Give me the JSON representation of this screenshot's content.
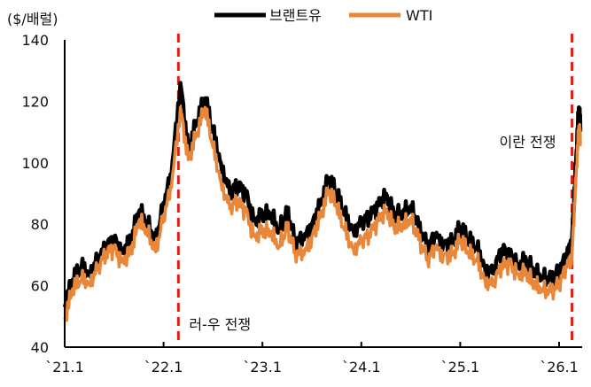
{
  "chart_data": {
    "type": "line",
    "ylabel": "($/배럴)",
    "ylim": [
      40,
      140
    ],
    "yticks": [
      40,
      60,
      80,
      100,
      120,
      140
    ],
    "xlim": [
      2021.0,
      2026.25
    ],
    "xticks": [
      {
        "value": 2021.0,
        "label": "`21.1"
      },
      {
        "value": 2022.0,
        "label": "`22.1"
      },
      {
        "value": 2023.0,
        "label": "`23.1"
      },
      {
        "value": 2024.0,
        "label": "`24.1"
      },
      {
        "value": 2025.0,
        "label": "`25.1"
      },
      {
        "value": 2026.0,
        "label": "`26.1"
      }
    ],
    "grid": false,
    "legend_position": "top-center",
    "colors": {
      "brent": "#000000",
      "wti": "#E8863A",
      "event": "#E0201B"
    },
    "x": [
      2021.0,
      2021.08,
      2021.17,
      2021.25,
      2021.33,
      2021.42,
      2021.5,
      2021.58,
      2021.67,
      2021.75,
      2021.83,
      2021.92,
      2022.0,
      2022.08,
      2022.17,
      2022.25,
      2022.33,
      2022.42,
      2022.5,
      2022.58,
      2022.67,
      2022.75,
      2022.83,
      2022.92,
      2023.0,
      2023.08,
      2023.17,
      2023.25,
      2023.33,
      2023.42,
      2023.5,
      2023.58,
      2023.67,
      2023.75,
      2023.83,
      2023.92,
      2024.0,
      2024.08,
      2024.17,
      2024.25,
      2024.33,
      2024.42,
      2024.5,
      2024.58,
      2024.67,
      2024.75,
      2024.83,
      2024.92,
      2025.0,
      2025.08,
      2025.17,
      2025.25,
      2025.33,
      2025.42,
      2025.5,
      2025.58,
      2025.67,
      2025.75,
      2025.83,
      2025.92,
      2026.0,
      2026.08,
      2026.13,
      2026.17,
      2026.2,
      2026.22
    ],
    "series": [
      {
        "name": "브랜트유",
        "values": [
          53,
          62,
          66,
          64,
          68,
          73,
          75,
          71,
          75,
          84,
          81,
          74,
          87,
          96,
          126,
          104,
          113,
          121,
          110,
          100,
          90,
          93,
          90,
          81,
          83,
          83,
          78,
          84,
          75,
          75,
          80,
          86,
          95,
          90,
          83,
          78,
          80,
          83,
          86,
          90,
          83,
          83,
          86,
          79,
          73,
          76,
          74,
          74,
          79,
          75,
          72,
          66,
          64,
          72,
          70,
          67,
          68,
          64,
          63,
          62,
          65,
          70,
          75,
          100,
          118,
          110
        ]
      },
      {
        "name": "WTI",
        "values": [
          49,
          59,
          62,
          61,
          65,
          71,
          72,
          68,
          71,
          81,
          78,
          71,
          83,
          92,
          118,
          101,
          109,
          118,
          105,
          94,
          85,
          88,
          84,
          76,
          78,
          77,
          73,
          79,
          71,
          70,
          76,
          82,
          91,
          86,
          78,
          72,
          74,
          77,
          81,
          85,
          79,
          79,
          82,
          75,
          69,
          72,
          70,
          70,
          75,
          71,
          68,
          62,
          60,
          67,
          67,
          64,
          64,
          60,
          59,
          58,
          61,
          66,
          70,
          95,
          112,
          106
        ]
      }
    ],
    "annotations": [
      {
        "x": 2022.15,
        "label": "러-우 전쟁"
      },
      {
        "x": 2026.13,
        "label": "이란 전쟁"
      }
    ]
  }
}
